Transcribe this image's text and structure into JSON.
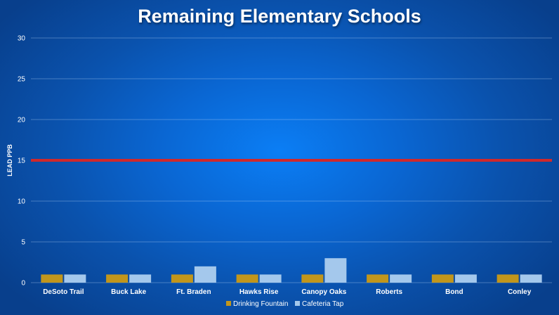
{
  "chart_data": {
    "type": "bar",
    "title": "Remaining Elementary Schools",
    "xlabel": "",
    "ylabel": "LEAD PPB",
    "ylim": [
      0,
      30
    ],
    "yticks": [
      0,
      5,
      10,
      15,
      20,
      25,
      30
    ],
    "categories": [
      "DeSoto Trail",
      "Buck Lake",
      "Ft. Braden",
      "Hawks Rise",
      "Canopy Oaks",
      "Roberts",
      "Bond",
      "Conley"
    ],
    "series": [
      {
        "name": "Drinking Fountain",
        "color": "#c1961c",
        "values": [
          1,
          1,
          1,
          1,
          1,
          1,
          1,
          1
        ]
      },
      {
        "name": "Cafeteria Tap",
        "color": "#a4c8ec",
        "values": [
          1,
          1,
          2,
          1,
          3,
          1,
          1,
          1
        ]
      }
    ],
    "reference_line": {
      "value": 15,
      "color": "#d0282b"
    },
    "grid": true,
    "legend": "bottom-center"
  }
}
